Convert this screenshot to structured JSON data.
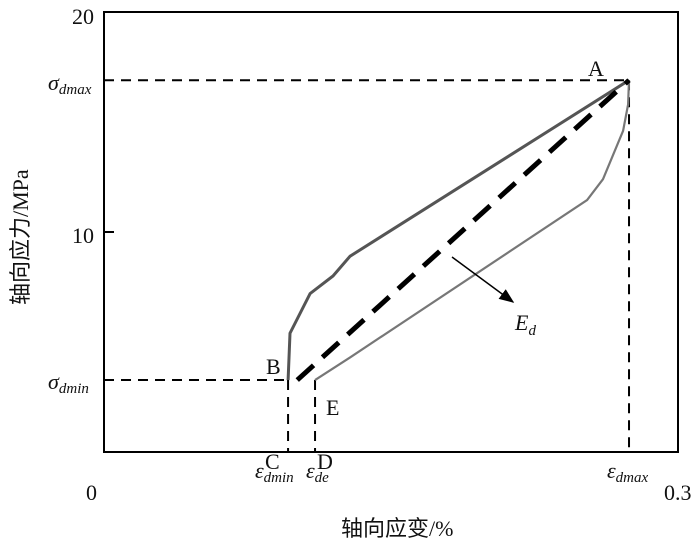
{
  "chart_data": {
    "type": "line",
    "xlabel": "轴向应变/%",
    "ylabel": "轴向应力/MPa",
    "xlim": [
      0,
      0.3
    ],
    "ylim": [
      0,
      20
    ],
    "x_tick_labels": [
      "0",
      "0.3"
    ],
    "y_tick_labels": [
      "20",
      "10"
    ],
    "y_ticks": [
      20,
      10
    ],
    "grid": false,
    "series": [
      {
        "role": "loading",
        "points": [
          [
            0.0962,
            3.27
          ],
          [
            0.0972,
            5.4
          ],
          [
            0.1077,
            7.2
          ],
          [
            0.1197,
            8.0
          ],
          [
            0.1286,
            8.9
          ],
          [
            0.2744,
            16.9
          ]
        ]
      },
      {
        "role": "unloading",
        "points": [
          [
            0.2744,
            16.9
          ],
          [
            0.2739,
            15.8
          ],
          [
            0.2713,
            14.6
          ],
          [
            0.2608,
            12.4
          ],
          [
            0.2525,
            11.45
          ],
          [
            0.1286,
            4.3
          ],
          [
            0.1103,
            3.27
          ]
        ]
      }
    ],
    "modulus_line": {
      "from": [
        0.101,
        3.27
      ],
      "to": [
        0.2744,
        16.9
      ],
      "label": "E",
      "label_sub": "d"
    },
    "reference_levels": {
      "sigma_dmax": {
        "value": 16.9,
        "label": "σ",
        "sub": "dmax"
      },
      "sigma_dmin": {
        "value": 3.27,
        "label": "σ",
        "sub": "dmin"
      },
      "eps_dmin": {
        "value": 0.0962,
        "label": "ε",
        "sub": "dmin"
      },
      "eps_de": {
        "value": 0.1103,
        "label": "ε",
        "sub": "de"
      },
      "eps_dmax": {
        "value": 0.2744,
        "label": "ε",
        "sub": "dmax"
      }
    },
    "point_labels": {
      "A": "A",
      "B": "B",
      "C": "C",
      "D": "D",
      "E": "E"
    }
  }
}
